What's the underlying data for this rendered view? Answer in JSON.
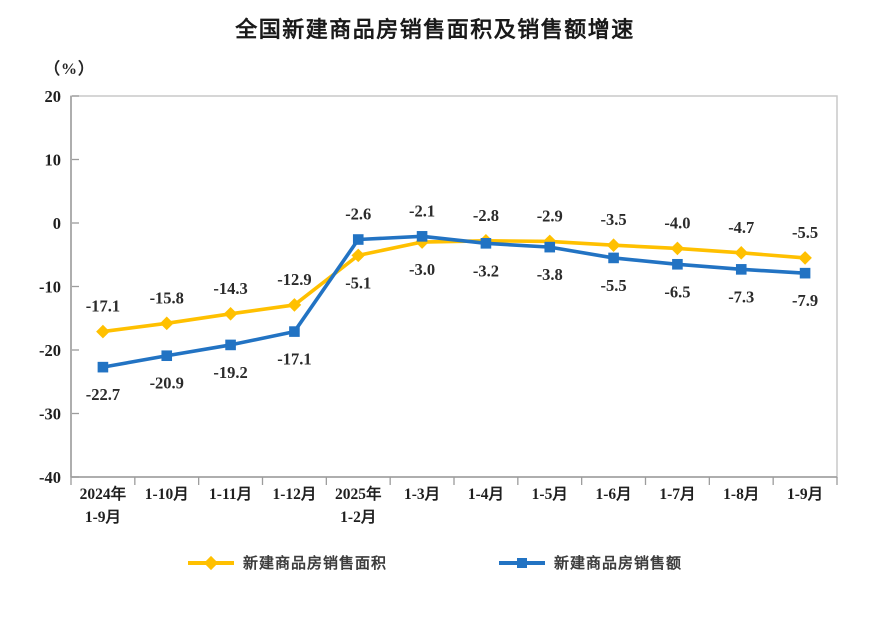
{
  "chart_data": {
    "type": "line",
    "title": "全国新建商品房销售面积及销售额增速",
    "ylabel": "（%）",
    "xlabel": "",
    "ylim": [
      -40,
      20
    ],
    "yticks": [
      20,
      10,
      0,
      -10,
      -20,
      -30,
      -40
    ],
    "grid": false,
    "plot_border": true,
    "legend_position": "bottom",
    "data_labels": true,
    "categories": [
      "2024年\n1-9月",
      "1-10月",
      "1-11月",
      "1-12月",
      "2025年\n1-2月",
      "1-3月",
      "1-4月",
      "1-5月",
      "1-6月",
      "1-7月",
      "1-8月",
      "1-9月"
    ],
    "series": [
      {
        "name": "新建商品房销售面积",
        "color": "#FFC000",
        "marker": "diamond",
        "values": [
          -17.1,
          -15.8,
          -14.3,
          -12.9,
          -5.1,
          -3.0,
          -2.8,
          -2.9,
          -3.5,
          -4.0,
          -4.7,
          -5.5
        ]
      },
      {
        "name": "新建商品房销售额",
        "color": "#2273C3",
        "marker": "square",
        "values": [
          -22.7,
          -20.9,
          -19.2,
          -17.1,
          -2.6,
          -2.1,
          -3.2,
          -3.8,
          -5.5,
          -6.5,
          -7.3,
          -7.9
        ]
      }
    ],
    "colors": {
      "axis": "#9C9C9C",
      "plot_border": "#C9C9C9",
      "tick_label": "#1f1f1f",
      "data_label": "#2b2b2b"
    }
  }
}
